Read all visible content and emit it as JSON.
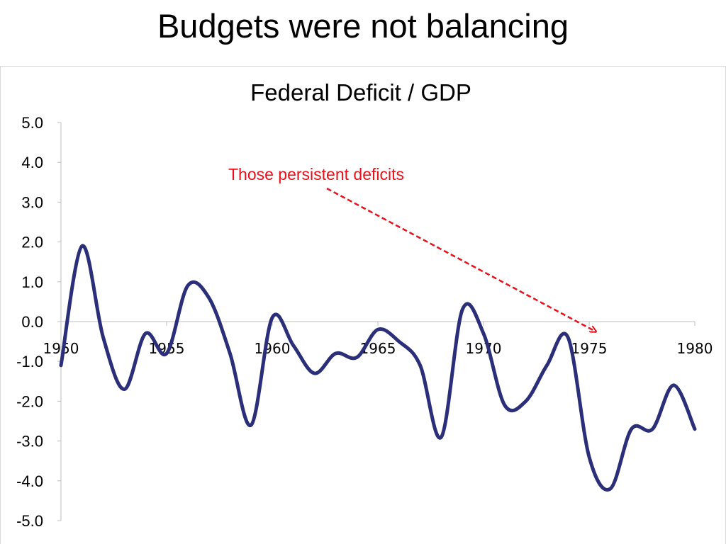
{
  "slide": {
    "title": "Budgets were not balancing"
  },
  "chart_data": {
    "type": "line",
    "title": "Federal Deficit / GDP",
    "xlabel": "",
    "ylabel": "",
    "xlim": [
      1950,
      1980
    ],
    "ylim": [
      -5.0,
      5.0
    ],
    "y_ticks": [
      "5.0",
      "4.0",
      "3.0",
      "2.0",
      "1.0",
      "0.0",
      "-1.0",
      "-2.0",
      "-3.0",
      "-4.0",
      "-5.0"
    ],
    "x_ticks": [
      "1950",
      "1955",
      "1960",
      "1965",
      "1970",
      "1975",
      "1980"
    ],
    "grid": false,
    "legend": "none",
    "series": [
      {
        "color": "#2b2f7a",
        "x": [
          1950,
          1951,
          1952,
          1953,
          1954,
          1955,
          1956,
          1957,
          1958,
          1959,
          1960,
          1961,
          1962,
          1963,
          1964,
          1965,
          1966,
          1967,
          1968,
          1969,
          1970,
          1971,
          1972,
          1973,
          1974,
          1975,
          1976,
          1977,
          1978,
          1979,
          1980
        ],
        "values": [
          -1.1,
          1.9,
          -0.4,
          -1.7,
          -0.3,
          -0.8,
          0.9,
          0.6,
          -0.8,
          -2.6,
          0.1,
          -0.6,
          -1.3,
          -0.8,
          -0.9,
          -0.2,
          -0.5,
          -1.1,
          -2.9,
          0.3,
          -0.3,
          -2.1,
          -2.0,
          -1.1,
          -0.4,
          -3.4,
          -4.2,
          -2.7,
          -2.7,
          -1.6,
          -2.7
        ]
      }
    ],
    "annotation": {
      "text": "Those persistent deficits",
      "color": "#e8111b",
      "points_to_x": 1975.5,
      "points_to_y": -0.3
    }
  }
}
